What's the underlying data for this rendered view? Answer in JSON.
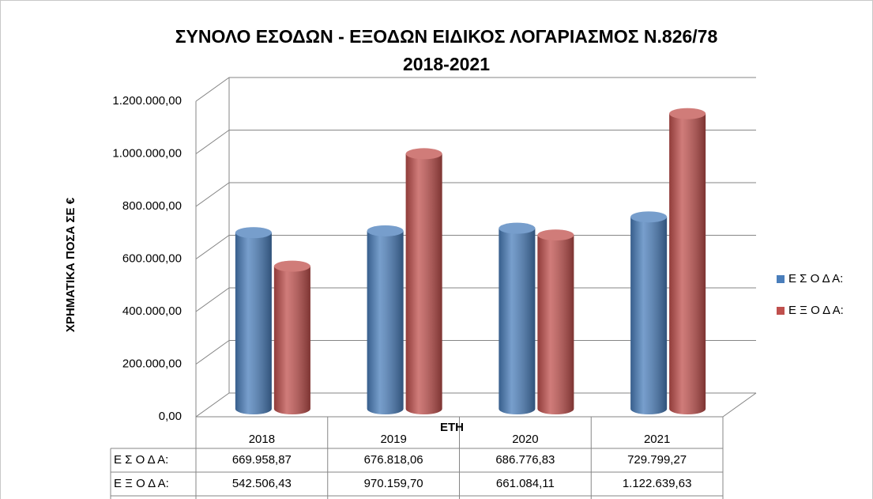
{
  "chart_data": {
    "type": "bar3d",
    "title": "ΣΥΝΟΛΟ ΕΣΟΔΩΝ - ΕΞΟΔΩΝ ΕΙΔΙΚΟΣ ΛΟΓΑΡΙΑΣΜΟΣ Ν.826/78",
    "subtitle": "2018-2021",
    "y_label": "ΧΡΗΜΑΤΙΚΑ ΠΟΣΑ ΣΕ €",
    "x_label": "ΕΤΗ",
    "categories": [
      "2018",
      "2019",
      "2020",
      "2021"
    ],
    "series": [
      {
        "name": "Ε Σ Ο Δ Α:",
        "color": "#4a7ebb",
        "values": [
          669958.87,
          676818.06,
          686776.83,
          729799.27
        ],
        "value_labels": [
          "669.958,87",
          "676.818,06",
          "686.776,83",
          "729.799,27"
        ]
      },
      {
        "name": "Ε Ξ Ο Δ Α:",
        "color": "#c0504d",
        "values": [
          542506.43,
          970159.7,
          661084.11,
          1122639.63
        ],
        "value_labels": [
          "542.506,43",
          "970.159,70",
          "661.084,11",
          "1.122.639,63"
        ]
      }
    ],
    "ylim": [
      0,
      1200000
    ],
    "yticks": [
      {
        "value": 0,
        "label": "0,00"
      },
      {
        "value": 200000,
        "label": "200.000,00"
      },
      {
        "value": 400000,
        "label": "400.000,00"
      },
      {
        "value": 600000,
        "label": "600.000,00"
      },
      {
        "value": 800000,
        "label": "800.000,00"
      },
      {
        "value": 1000000,
        "label": "1.000.000,00"
      },
      {
        "value": 1200000,
        "label": "1.200.000,00"
      }
    ],
    "grid": true,
    "legend": "right",
    "data_table": true
  }
}
